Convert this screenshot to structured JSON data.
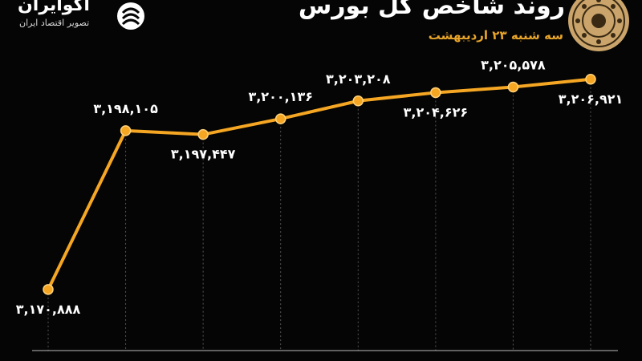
{
  "header": {
    "title": "روند شاخص کل بورس",
    "subtitle": "سه شنبه ۲۳ اردیبهشت",
    "brand_name": "اکوایران",
    "brand_tagline": "تصویر اقتصاد ایران",
    "brand_icon": "ekoiran-logo-icon",
    "seal_icon": "tehran-stock-exchange-seal-icon"
  },
  "colors": {
    "background": "#050505",
    "line": "#f5a623",
    "marker": "#f5a623",
    "label": "#ffffff",
    "gridline": "#555555",
    "subtitle": "#e8a52a"
  },
  "chart_data": {
    "type": "line",
    "title": "روند شاخص کل بورس",
    "subtitle": "سه شنبه ۲۳ اردیبهشت",
    "grid": "vertical dashed drop lines at each point",
    "legend": "none",
    "ylim": [
      3160000,
      3215000
    ],
    "series": [
      {
        "values": [
          3170888,
          3198105,
          3197447,
          3200136,
          3203208,
          3204626,
          3205578,
          3206921
        ],
        "labels": [
          "۳,۱۷۰,۸۸۸",
          "۳,۱۹۸,۱۰۵",
          "۳,۱۹۷,۴۴۷",
          "۳,۲۰۰,۱۳۶",
          "۳,۲۰۳,۲۰۸",
          "۳,۲۰۴,۶۲۶",
          "۳,۲۰۵,۵۷۸",
          "۳,۲۰۶,۹۲۱"
        ],
        "label_positions": [
          "below",
          "above",
          "below",
          "above",
          "above",
          "below",
          "above",
          "below"
        ]
      }
    ]
  }
}
